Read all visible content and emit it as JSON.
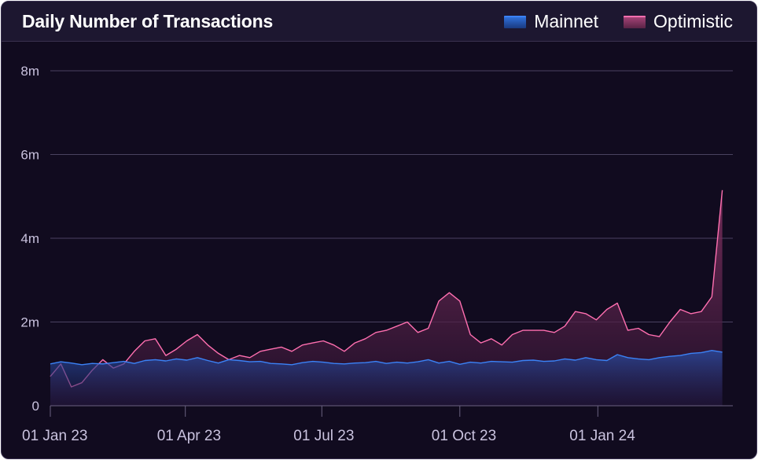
{
  "chart_data": {
    "type": "area",
    "title": "Daily Number of Transactions",
    "x_ticks": [
      "01 Jan 23",
      "01 Apr 23",
      "01 Jul 23",
      "01 Oct 23",
      "01 Jan 24"
    ],
    "y_ticks": [
      "0",
      "2m",
      "4m",
      "6m",
      "8m"
    ],
    "ylim": [
      0,
      8000000
    ],
    "grid": true,
    "legend_position": "top-right",
    "series": [
      {
        "name": "Mainnet",
        "color": "#3b82f6",
        "x": [
          "2023-01-01",
          "2023-01-08",
          "2023-01-15",
          "2023-01-22",
          "2023-01-29",
          "2023-02-05",
          "2023-02-12",
          "2023-02-19",
          "2023-02-26",
          "2023-03-05",
          "2023-03-12",
          "2023-03-19",
          "2023-03-26",
          "2023-04-02",
          "2023-04-09",
          "2023-04-16",
          "2023-04-23",
          "2023-04-30",
          "2023-05-07",
          "2023-05-14",
          "2023-05-21",
          "2023-05-28",
          "2023-06-04",
          "2023-06-11",
          "2023-06-18",
          "2023-06-25",
          "2023-07-02",
          "2023-07-09",
          "2023-07-16",
          "2023-07-23",
          "2023-07-30",
          "2023-08-06",
          "2023-08-13",
          "2023-08-20",
          "2023-08-27",
          "2023-09-03",
          "2023-09-10",
          "2023-09-17",
          "2023-09-24",
          "2023-10-01",
          "2023-10-08",
          "2023-10-15",
          "2023-10-22",
          "2023-10-29",
          "2023-11-05",
          "2023-11-12",
          "2023-11-19",
          "2023-11-26",
          "2023-12-03",
          "2023-12-10",
          "2023-12-17",
          "2023-12-24",
          "2023-12-31",
          "2024-01-07",
          "2024-01-14",
          "2024-01-21",
          "2024-01-28",
          "2024-02-04",
          "2024-02-11",
          "2024-02-18",
          "2024-02-25",
          "2024-03-03",
          "2024-03-10",
          "2024-03-17",
          "2024-03-24"
        ],
        "values": [
          1000000,
          1050000,
          1020000,
          980000,
          1010000,
          1000000,
          1030000,
          1060000,
          1010000,
          1080000,
          1100000,
          1070000,
          1120000,
          1090000,
          1150000,
          1080000,
          1020000,
          1100000,
          1080000,
          1050000,
          1060000,
          1010000,
          1000000,
          980000,
          1030000,
          1060000,
          1040000,
          1010000,
          1000000,
          1020000,
          1030000,
          1060000,
          1010000,
          1040000,
          1020000,
          1050000,
          1100000,
          1020000,
          1060000,
          990000,
          1040000,
          1020000,
          1060000,
          1050000,
          1040000,
          1080000,
          1090000,
          1060000,
          1070000,
          1120000,
          1090000,
          1150000,
          1100000,
          1080000,
          1220000,
          1150000,
          1120000,
          1100000,
          1150000,
          1180000,
          1200000,
          1250000,
          1270000,
          1320000,
          1280000
        ]
      },
      {
        "name": "Optimistic",
        "color": "#ff6fb0",
        "x": [
          "2023-01-01",
          "2023-01-08",
          "2023-01-15",
          "2023-01-22",
          "2023-01-29",
          "2023-02-05",
          "2023-02-12",
          "2023-02-19",
          "2023-02-26",
          "2023-03-05",
          "2023-03-12",
          "2023-03-19",
          "2023-03-26",
          "2023-04-02",
          "2023-04-09",
          "2023-04-16",
          "2023-04-23",
          "2023-04-30",
          "2023-05-07",
          "2023-05-14",
          "2023-05-21",
          "2023-05-28",
          "2023-06-04",
          "2023-06-11",
          "2023-06-18",
          "2023-06-25",
          "2023-07-02",
          "2023-07-09",
          "2023-07-16",
          "2023-07-23",
          "2023-07-30",
          "2023-08-06",
          "2023-08-13",
          "2023-08-20",
          "2023-08-27",
          "2023-09-03",
          "2023-09-10",
          "2023-09-17",
          "2023-09-24",
          "2023-10-01",
          "2023-10-08",
          "2023-10-15",
          "2023-10-22",
          "2023-10-29",
          "2023-11-05",
          "2023-11-12",
          "2023-11-19",
          "2023-11-26",
          "2023-12-03",
          "2023-12-10",
          "2023-12-17",
          "2023-12-24",
          "2023-12-31",
          "2024-01-07",
          "2024-01-14",
          "2024-01-21",
          "2024-01-28",
          "2024-02-04",
          "2024-02-11",
          "2024-02-18",
          "2024-02-25",
          "2024-03-03",
          "2024-03-10",
          "2024-03-17",
          "2024-03-24"
        ],
        "values": [
          700000,
          1000000,
          450000,
          550000,
          850000,
          1100000,
          900000,
          1000000,
          1300000,
          1550000,
          1600000,
          1200000,
          1350000,
          1550000,
          1700000,
          1450000,
          1250000,
          1100000,
          1200000,
          1150000,
          1300000,
          1350000,
          1400000,
          1300000,
          1450000,
          1500000,
          1550000,
          1450000,
          1300000,
          1500000,
          1600000,
          1750000,
          1800000,
          1900000,
          2000000,
          1750000,
          1850000,
          2500000,
          2700000,
          2500000,
          1700000,
          1500000,
          1600000,
          1450000,
          1700000,
          1800000,
          1800000,
          1800000,
          1750000,
          1900000,
          2250000,
          2200000,
          2050000,
          2300000,
          2450000,
          1800000,
          1850000,
          1700000,
          1650000,
          2000000,
          2300000,
          2200000,
          2250000,
          2600000,
          5150000
        ]
      }
    ]
  }
}
